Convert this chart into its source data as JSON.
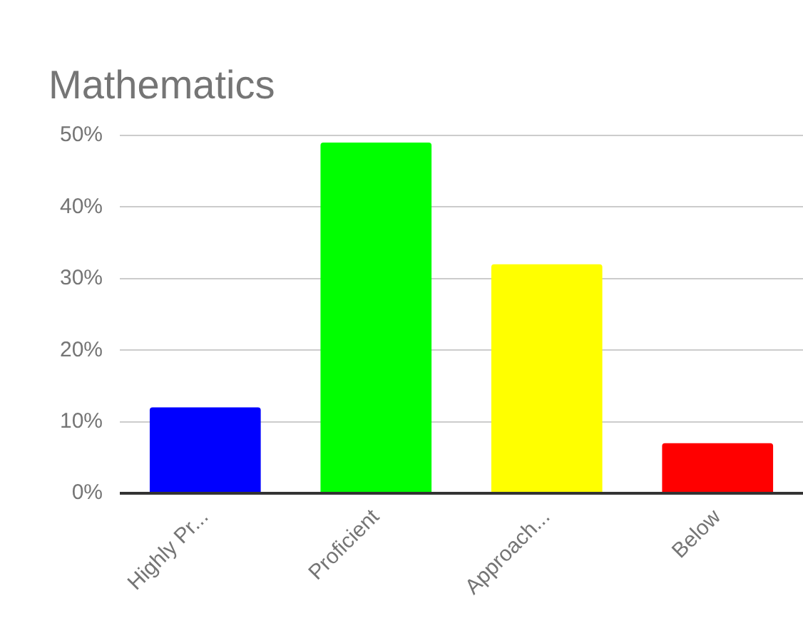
{
  "chart_data": {
    "type": "bar",
    "title": "Mathematics",
    "categories": [
      "Highly Pr...",
      "Proficient",
      "Approach...",
      "Below"
    ],
    "values": [
      12,
      49,
      32,
      7
    ],
    "colors": [
      "#0000ff",
      "#00ff00",
      "#ffff00",
      "#ff0000"
    ],
    "ylim": [
      0,
      50
    ],
    "yticks": [
      {
        "value": 0,
        "label": "0%"
      },
      {
        "value": 10,
        "label": "10%"
      },
      {
        "value": 20,
        "label": "20%"
      },
      {
        "value": 30,
        "label": "30%"
      },
      {
        "value": 40,
        "label": "40%"
      },
      {
        "value": 50,
        "label": "50%"
      }
    ],
    "grid": "y",
    "legend": false
  }
}
